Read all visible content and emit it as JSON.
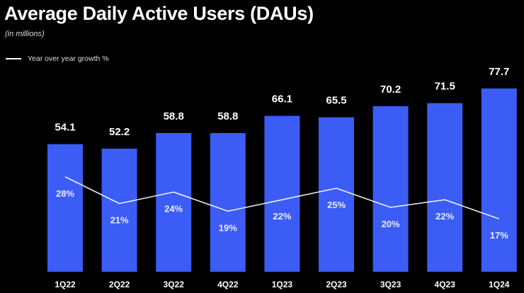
{
  "chart_data": {
    "type": "bar",
    "title": "Average Daily Active Users (DAUs)",
    "subtitle": "(in millions)",
    "legend_label": "Year over year growth %",
    "categories": [
      "1Q22",
      "2Q22",
      "3Q22",
      "4Q22",
      "1Q23",
      "2Q23",
      "3Q23",
      "4Q23",
      "1Q24"
    ],
    "series": [
      {
        "name": "DAUs (millions)",
        "type": "bar",
        "values": [
          54.1,
          52.2,
          58.8,
          58.8,
          66.1,
          65.5,
          70.2,
          71.5,
          77.7
        ],
        "labels": [
          "54.1",
          "52.2",
          "58.8",
          "58.8",
          "66.1",
          "65.5",
          "70.2",
          "71.5",
          "77.7"
        ]
      },
      {
        "name": "Year over year growth %",
        "type": "line",
        "values": [
          28,
          21,
          24,
          19,
          22,
          25,
          20,
          22,
          17
        ],
        "labels": [
          "28%",
          "21%",
          "24%",
          "19%",
          "22%",
          "25%",
          "20%",
          "22%",
          "17%"
        ]
      }
    ],
    "colors": {
      "bar": "#3c5cf6",
      "line": "#ffffff",
      "background": "#000000",
      "text": "#ffffff"
    }
  }
}
